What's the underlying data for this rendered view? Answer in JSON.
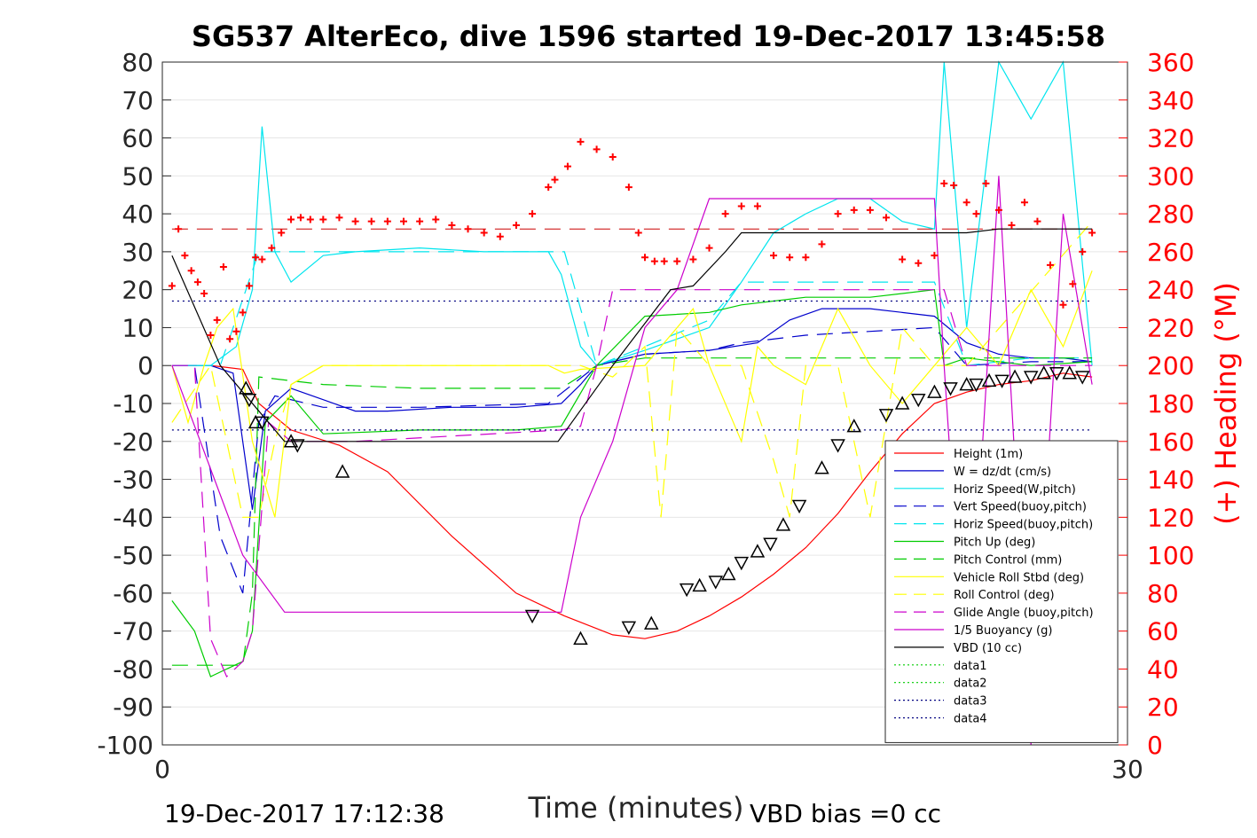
{
  "chart_data": {
    "type": "line",
    "title": "SG537 AlterEco, dive 1596 started 19-Dec-2017 13:45:58",
    "xlabel": "Time (minutes)",
    "ylabel": "",
    "ylabel_right": "(+) Heading (°M)",
    "xlim": [
      0,
      30
    ],
    "ylim": [
      -100,
      80
    ],
    "ylim_right": [
      0,
      360
    ],
    "x_ticks": [
      "0",
      "30"
    ],
    "y_ticks": [
      "80",
      "70",
      "60",
      "50",
      "40",
      "30",
      "20",
      "10",
      "0",
      "-10",
      "-20",
      "-30",
      "-40",
      "-50",
      "-60",
      "-70",
      "-80",
      "-90",
      "-100"
    ],
    "y_ticks_right": [
      "360",
      "340",
      "320",
      "300",
      "280",
      "260",
      "240",
      "220",
      "200",
      "180",
      "160",
      "140",
      "120",
      "100",
      "80",
      "60",
      "40",
      "20",
      "0"
    ],
    "footer_left": "19-Dec-2017 17:12:38",
    "footer_right": "VBD bias =0 cc",
    "legend_position": "bottom-right",
    "colors": {
      "height": "#ff0000",
      "w": "#0000cc",
      "horiz_speed": "#00e5ee",
      "pitch": "#00cc00",
      "roll": "#ffff00",
      "glide": "#cc00cc",
      "buoyancy": "#cc00cc",
      "vbd": "#000000",
      "heading": "#ff0000"
    },
    "series": [
      {
        "name": "Height (1m)",
        "style": "solid",
        "color": "#ff0000",
        "x": [
          0.3,
          1.5,
          2.5,
          3.0,
          4.0,
          5.5,
          7.0,
          9.0,
          11.0,
          12.5,
          14.0,
          15.0,
          16.0,
          17.0,
          18.0,
          19.0,
          20.0,
          21.0,
          22.0,
          23.0,
          24.0,
          25.0,
          26.0,
          27.0,
          28.0,
          28.9
        ],
        "y": [
          0,
          0,
          -1,
          -10,
          -17,
          -21,
          -28,
          -45,
          -60,
          -66,
          -71,
          -72,
          -70,
          -66,
          -61,
          -55,
          -48,
          -39,
          -28,
          -18,
          -10,
          -7,
          -5,
          -4,
          -2,
          -3
        ]
      },
      {
        "name": "W = dz/dt (cm/s)",
        "style": "solid",
        "color": "#0000cc",
        "x": [
          0.3,
          1.5,
          2.2,
          2.8,
          3.2,
          4.0,
          5.0,
          6.0,
          7.0,
          9.0,
          11.0,
          12.4,
          13.0,
          13.5,
          15.0,
          17.0,
          18.5,
          19.5,
          20.5,
          22.0,
          24.0,
          25.0,
          26.0,
          27.0,
          28.0,
          28.9
        ],
        "y": [
          0,
          0,
          -2,
          -38,
          -12,
          -6,
          -9,
          -12,
          -12,
          -11,
          -11,
          -10,
          -5,
          0,
          3,
          4,
          6,
          12,
          15,
          15,
          13,
          6,
          3,
          2,
          2,
          1
        ]
      },
      {
        "name": "Horiz Speed(W,pitch)",
        "style": "solid",
        "color": "#00e5ee",
        "x": [
          0.3,
          1.5,
          2.3,
          2.8,
          3.1,
          3.5,
          4.0,
          5.0,
          6.0,
          8.0,
          10.0,
          12.0,
          12.4,
          13.0,
          13.5,
          15.0,
          17.0,
          18.0,
          19.0,
          20.0,
          21.0,
          22.0,
          23.0,
          24.0,
          24.3,
          25.0,
          26.0,
          27.0,
          28.0,
          28.9
        ],
        "y": [
          0,
          0,
          5,
          20,
          63,
          30,
          22,
          29,
          30,
          31,
          30,
          30,
          24,
          5,
          0,
          4,
          10,
          22,
          35,
          40,
          44,
          44,
          38,
          36,
          80,
          10,
          80,
          65,
          80,
          0
        ]
      },
      {
        "name": "Vert Speed(buoy,pitch)",
        "style": "dashed",
        "color": "#0000cc",
        "x": [
          0.3,
          1.0,
          1.8,
          2.5,
          3.0,
          3.5,
          5.0,
          8.0,
          12.0,
          13.5,
          15.0,
          17.0,
          18.0,
          20.0,
          22.0,
          24.0,
          25.0,
          27.0,
          28.9
        ],
        "y": [
          0,
          0,
          -45,
          -60,
          -15,
          -8,
          -11,
          -11,
          -10,
          0,
          3,
          4,
          6,
          8,
          9,
          10,
          0,
          1,
          1
        ]
      },
      {
        "name": "Horiz Speed(buoy,pitch)",
        "style": "dashed",
        "color": "#00e5ee",
        "x": [
          0.3,
          1.8,
          3.0,
          3.5,
          5.0,
          8.0,
          12.0,
          12.5,
          13.5,
          15.0,
          17.0,
          18.0,
          20.0,
          22.0,
          24.0,
          25.0,
          27.0,
          28.9
        ],
        "y": [
          0,
          0,
          30,
          30,
          30,
          30,
          30,
          30,
          0,
          5,
          12,
          22,
          22,
          22,
          22,
          0,
          2,
          2
        ]
      },
      {
        "name": "Pitch Up (deg)",
        "style": "solid",
        "color": "#00cc00",
        "x": [
          0.3,
          1.0,
          1.5,
          2.0,
          2.5,
          2.8,
          3.2,
          4.0,
          5.0,
          8.0,
          11.0,
          12.4,
          13.5,
          15.0,
          17.0,
          18.0,
          20.0,
          22.0,
          24.0,
          24.3,
          25.0,
          27.0,
          28.9
        ],
        "y": [
          -62,
          -70,
          -82,
          -80,
          -78,
          -70,
          -15,
          -8,
          -18,
          -17,
          -17,
          -16,
          0,
          13,
          14,
          16,
          18,
          18,
          20,
          0,
          2,
          0,
          1
        ]
      },
      {
        "name": "Pitch Control (mm)",
        "style": "dashed",
        "color": "#00cc00",
        "x": [
          0.3,
          2.5,
          2.8,
          3.0,
          5.0,
          8.0,
          12.4,
          13.5,
          15.0,
          18.0,
          22.0,
          24.3,
          25.0,
          28.9
        ],
        "y": [
          -79,
          -79,
          -60,
          -3,
          -5,
          -6,
          -6,
          0,
          2,
          2,
          2,
          2,
          2,
          2
        ]
      },
      {
        "name": "Vehicle Roll Stbd (deg)",
        "style": "solid",
        "color": "#ffff00",
        "x": [
          0.3,
          0.8,
          1.3,
          1.7,
          2.2,
          2.8,
          3.5,
          4.0,
          5.0,
          6.0,
          10.0,
          12.0,
          12.5,
          13.0,
          15.0,
          16.5,
          17.0,
          18.0,
          18.5,
          19.0,
          20.0,
          21.0,
          22.0,
          23.0,
          24.0,
          25.0,
          26.0,
          27.0,
          28.0,
          28.9
        ],
        "y": [
          0,
          -15,
          0,
          10,
          15,
          -20,
          -40,
          -5,
          0,
          0,
          0,
          0,
          -2,
          -1,
          0,
          15,
          0,
          -20,
          5,
          0,
          -5,
          15,
          0,
          -10,
          0,
          10,
          0,
          20,
          5,
          25
        ]
      },
      {
        "name": "Roll Control (deg)",
        "style": "dashed",
        "color": "#ffff00",
        "x": [
          0.3,
          1.5,
          2.5,
          3.0,
          3.5,
          4.0,
          5.0,
          8.0,
          12.0,
          13.0,
          14.0,
          15.0,
          15.5,
          16.0,
          17.0,
          18.0,
          19.0,
          19.5,
          20.0,
          21.0,
          22.0,
          23.0,
          24.0,
          25.0,
          28.9
        ],
        "y": [
          -15,
          0,
          -40,
          -40,
          -20,
          -5,
          0,
          0,
          0,
          0,
          -3,
          5,
          -40,
          10,
          0,
          0,
          -25,
          -40,
          0,
          0,
          -40,
          10,
          0,
          0,
          38
        ]
      },
      {
        "name": "Glide Angle (buoy,pitch)",
        "style": "dashed",
        "color": "#cc00cc",
        "x": [
          0.3,
          1.0,
          1.5,
          2.0,
          2.5,
          2.8,
          3.3,
          4.0,
          6.0,
          12.4,
          13.0,
          13.5,
          14.0,
          15.0,
          17.0,
          18.0,
          20.0,
          22.0,
          24.3,
          25.0,
          27.0,
          28.9
        ],
        "y": [
          0,
          0,
          -72,
          -82,
          -78,
          -70,
          -15,
          -20,
          -20,
          -17,
          -16,
          0,
          20,
          20,
          20,
          20,
          20,
          20,
          20,
          0,
          0,
          0
        ]
      },
      {
        "name": "1/5 Buoyancy (g)",
        "style": "solid",
        "color": "#cc00cc",
        "x": [
          0.3,
          2.5,
          3.8,
          6.0,
          12.4,
          13.0,
          14.0,
          15.0,
          16.0,
          17.0,
          18.0,
          21.0,
          24.0,
          24.3,
          25.0,
          26.0,
          27.0,
          28.0,
          28.9
        ],
        "y": [
          0,
          -50,
          -65,
          -65,
          -65,
          -40,
          -20,
          10,
          20,
          44,
          44,
          44,
          44,
          0,
          -90,
          50,
          -100,
          40,
          -5
        ]
      },
      {
        "name": "VBD (10 cc)",
        "style": "solid",
        "color": "#000000",
        "x": [
          0.3,
          1.8,
          3.8,
          6.0,
          12.3,
          14.0,
          15.8,
          16.5,
          17.5,
          18.0,
          21.0,
          24.0,
          25.0,
          26.0,
          28.9
        ],
        "y": [
          29,
          0,
          -20,
          -20,
          -20,
          0,
          20,
          21,
          30,
          35,
          35,
          35,
          35,
          36,
          36
        ]
      },
      {
        "name": "data1",
        "style": "dotted",
        "color": "#00cc00",
        "x": [],
        "y": []
      },
      {
        "name": "data2",
        "style": "dotted",
        "color": "#00cc00",
        "x": [],
        "y": []
      },
      {
        "name": "data3",
        "style": "dotted",
        "color": "#000080",
        "x": [
          0.3,
          28.9
        ],
        "y": [
          17,
          17
        ]
      },
      {
        "name": "data4",
        "style": "dotted",
        "color": "#000080",
        "x": [
          0.3,
          28.9
        ],
        "y": [
          -17,
          -17
        ]
      }
    ],
    "reference_lines": [
      {
        "y": 36,
        "style": "dashed",
        "color": "#cc0000"
      }
    ],
    "heading_points": {
      "x": [
        0.3,
        0.5,
        0.7,
        0.9,
        1.1,
        1.3,
        1.5,
        1.7,
        1.9,
        2.1,
        2.3,
        2.5,
        2.7,
        2.9,
        3.1,
        3.4,
        3.7,
        4.0,
        4.3,
        4.6,
        5.0,
        5.5,
        6.0,
        6.5,
        7.0,
        7.5,
        8.0,
        8.5,
        9.0,
        9.5,
        10.0,
        10.5,
        11.0,
        11.5,
        12.0,
        12.2,
        12.6,
        13.0,
        13.5,
        14.0,
        14.5,
        14.8,
        15.0,
        15.3,
        15.6,
        16.0,
        16.5,
        17.0,
        17.5,
        18.0,
        18.5,
        19.0,
        19.5,
        20.0,
        20.5,
        21.0,
        21.5,
        22.0,
        22.5,
        23.0,
        23.5,
        24.0,
        24.3,
        24.6,
        25.0,
        25.3,
        25.6,
        26.0,
        26.4,
        26.8,
        27.2,
        27.6,
        28.0,
        28.3,
        28.6,
        28.9
      ],
      "y": [
        242,
        272,
        258,
        250,
        244,
        238,
        216,
        224,
        252,
        214,
        218,
        228,
        242,
        257,
        256,
        262,
        270,
        277,
        278,
        277,
        277,
        278,
        276,
        276,
        276,
        276,
        276,
        277,
        274,
        272,
        270,
        268,
        274,
        280,
        294,
        298,
        305,
        318,
        314,
        310,
        294,
        270,
        257,
        255,
        255,
        255,
        256,
        262,
        280,
        284,
        284,
        258,
        257,
        257,
        264,
        280,
        282,
        282,
        278,
        256,
        254,
        258,
        296,
        295,
        286,
        280,
        296,
        282,
        274,
        286,
        276,
        253,
        232,
        243,
        260,
        270
      ]
    },
    "glider_markers": {
      "x": [
        2.6,
        2.7,
        2.9,
        3.1,
        4.0,
        4.2,
        5.6,
        11.5,
        13.0,
        14.5,
        15.2,
        16.3,
        16.7,
        17.2,
        17.6,
        18.0,
        18.5,
        18.9,
        19.3,
        19.8,
        20.5,
        21.0,
        21.5,
        22.5,
        23.0,
        23.5,
        24.0,
        24.5,
        25.0,
        25.3,
        25.7,
        26.1,
        26.5,
        27.0,
        27.4,
        27.8,
        28.2,
        28.6
      ],
      "y": [
        -6,
        -9,
        -15,
        -15,
        -20,
        -21,
        -28,
        -66,
        -72,
        -69,
        -68,
        -59,
        -58,
        -57,
        -55,
        -52,
        -49,
        -47,
        -42,
        -37,
        -27,
        -21,
        -16,
        -13,
        -10,
        -9,
        -7,
        -6,
        -5,
        -5,
        -4,
        -4,
        -3,
        -3,
        -2,
        -2,
        -2,
        -3
      ]
    }
  }
}
